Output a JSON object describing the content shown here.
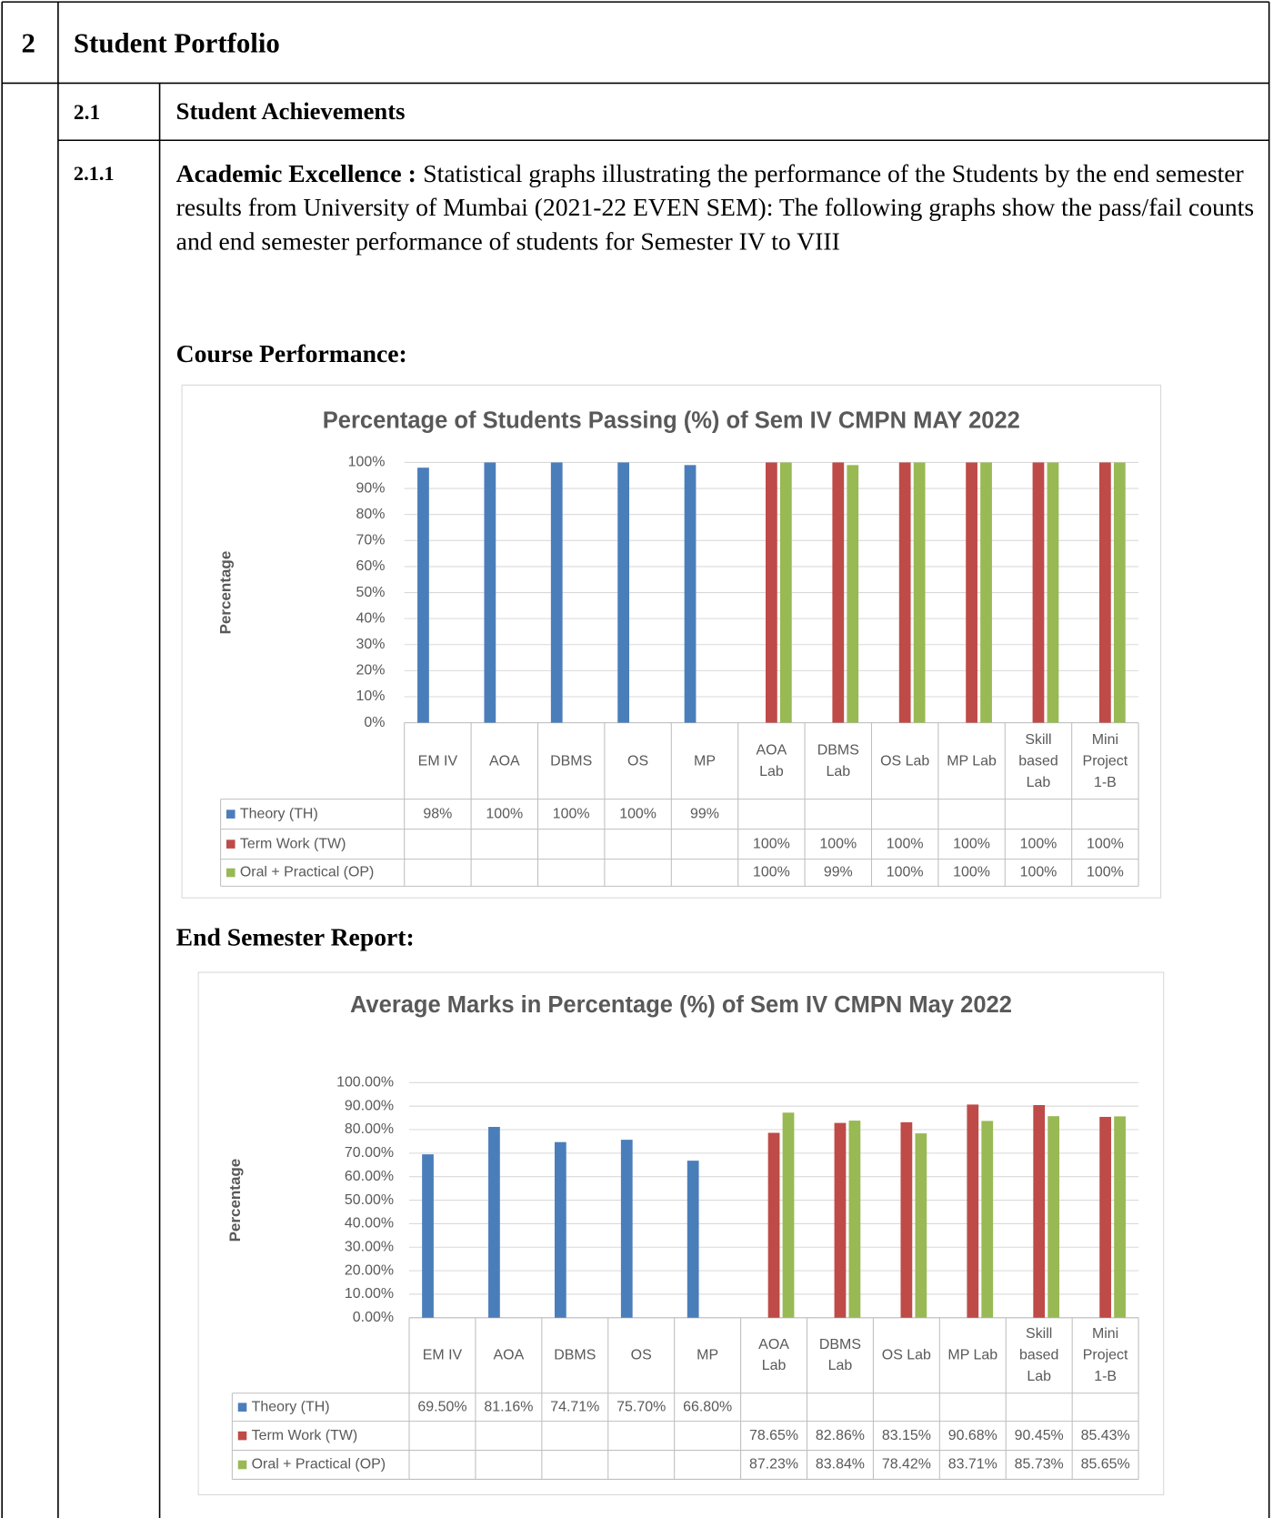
{
  "section": {
    "number": "2",
    "title": "Student Portfolio"
  },
  "subsection": {
    "number": "2.1",
    "title": "Student Achievements"
  },
  "item": {
    "number": "2.1.1",
    "lead": "Academic Excellence :",
    "text": "Statistical graphs illustrating the performance of the Students by the end semester results from University of Mumbai (2021-22 EVEN SEM): The following graphs show the pass/fail counts and end semester performance of students for Semester IV to VIII",
    "course_heading": "Course Performance:",
    "report_heading": "End Semester Report:"
  },
  "chart_data": [
    {
      "type": "bar",
      "title": "Percentage of Students Passing (%) of Sem IV CMPN MAY 2022",
      "y_label": "Percentage",
      "categories": [
        "EM IV",
        "AOA",
        "DBMS",
        "OS",
        "MP",
        "AOA Lab",
        "DBMS Lab",
        "OS Lab",
        "MP Lab",
        "Skill based Lab",
        "Mini Project 1-B"
      ],
      "series": [
        {
          "name": "Theory (TH)",
          "color": "#4a7ebb",
          "values": [
            98,
            100,
            100,
            100,
            99,
            null,
            null,
            null,
            null,
            null,
            null
          ],
          "value_labels": [
            "98%",
            "100%",
            "100%",
            "100%",
            "99%",
            null,
            null,
            null,
            null,
            null,
            null
          ]
        },
        {
          "name": "Term Work (TW)",
          "color": "#be4b48",
          "values": [
            null,
            null,
            null,
            null,
            null,
            100,
            100,
            100,
            100,
            100,
            100
          ],
          "value_labels": [
            null,
            null,
            null,
            null,
            null,
            "100%",
            "100%",
            "100%",
            "100%",
            "100%",
            "100%"
          ]
        },
        {
          "name": "Oral + Practical (OP)",
          "color": "#98b954",
          "values": [
            null,
            null,
            null,
            null,
            null,
            100,
            99,
            100,
            100,
            100,
            100
          ],
          "value_labels": [
            null,
            null,
            null,
            null,
            null,
            "100%",
            "99%",
            "100%",
            "100%",
            "100%",
            "100%"
          ]
        }
      ],
      "ylim": [
        0,
        100
      ],
      "yticks": [
        {
          "value": 0,
          "label": "0%"
        },
        {
          "value": 10,
          "label": "10%"
        },
        {
          "value": 20,
          "label": "20%"
        },
        {
          "value": 30,
          "label": "30%"
        },
        {
          "value": 40,
          "label": "40%"
        },
        {
          "value": 50,
          "label": "50%"
        },
        {
          "value": 60,
          "label": "60%"
        },
        {
          "value": 70,
          "label": "70%"
        },
        {
          "value": 80,
          "label": "80%"
        },
        {
          "value": 90,
          "label": "90%"
        },
        {
          "value": 100,
          "label": "100%"
        }
      ],
      "grid": true,
      "legend": "table"
    },
    {
      "type": "bar",
      "title": "Average Marks in Percentage (%) of Sem  IV CMPN May 2022",
      "y_label": "Percentage",
      "categories": [
        "EM IV",
        "AOA",
        "DBMS",
        "OS",
        "MP",
        "AOA Lab",
        "DBMS Lab",
        "OS Lab",
        "MP Lab",
        "Skill based Lab",
        "Mini Project 1-B"
      ],
      "series": [
        {
          "name": "Theory (TH)",
          "color": "#4a7ebb",
          "values": [
            69.5,
            81.16,
            74.71,
            75.7,
            66.8,
            null,
            null,
            null,
            null,
            null,
            null
          ],
          "value_labels": [
            "69.50%",
            "81.16%",
            "74.71%",
            "75.70%",
            "66.80%",
            null,
            null,
            null,
            null,
            null,
            null
          ]
        },
        {
          "name": "Term Work (TW)",
          "color": "#be4b48",
          "values": [
            null,
            null,
            null,
            null,
            null,
            78.65,
            82.86,
            83.15,
            90.68,
            90.45,
            85.43
          ],
          "value_labels": [
            null,
            null,
            null,
            null,
            null,
            "78.65%",
            "82.86%",
            "83.15%",
            "90.68%",
            "90.45%",
            "85.43%"
          ]
        },
        {
          "name": "Oral + Practical (OP)",
          "color": "#98b954",
          "values": [
            null,
            null,
            null,
            null,
            null,
            87.23,
            83.84,
            78.42,
            83.71,
            85.73,
            85.65
          ],
          "value_labels": [
            null,
            null,
            null,
            null,
            null,
            "87.23%",
            "83.84%",
            "78.42%",
            "83.71%",
            "85.73%",
            "85.65%"
          ]
        }
      ],
      "ylim": [
        0,
        100
      ],
      "yticks": [
        {
          "value": 0,
          "label": "0.00%"
        },
        {
          "value": 10,
          "label": "10.00%"
        },
        {
          "value": 20,
          "label": "20.00%"
        },
        {
          "value": 30,
          "label": "30.00%"
        },
        {
          "value": 40,
          "label": "40.00%"
        },
        {
          "value": 50,
          "label": "50.00%"
        },
        {
          "value": 60,
          "label": "60.00%"
        },
        {
          "value": 70,
          "label": "70.00%"
        },
        {
          "value": 80,
          "label": "80.00%"
        },
        {
          "value": 90,
          "label": "90.00%"
        },
        {
          "value": 100,
          "label": "100.00%"
        }
      ],
      "grid": true,
      "legend": "table"
    }
  ]
}
